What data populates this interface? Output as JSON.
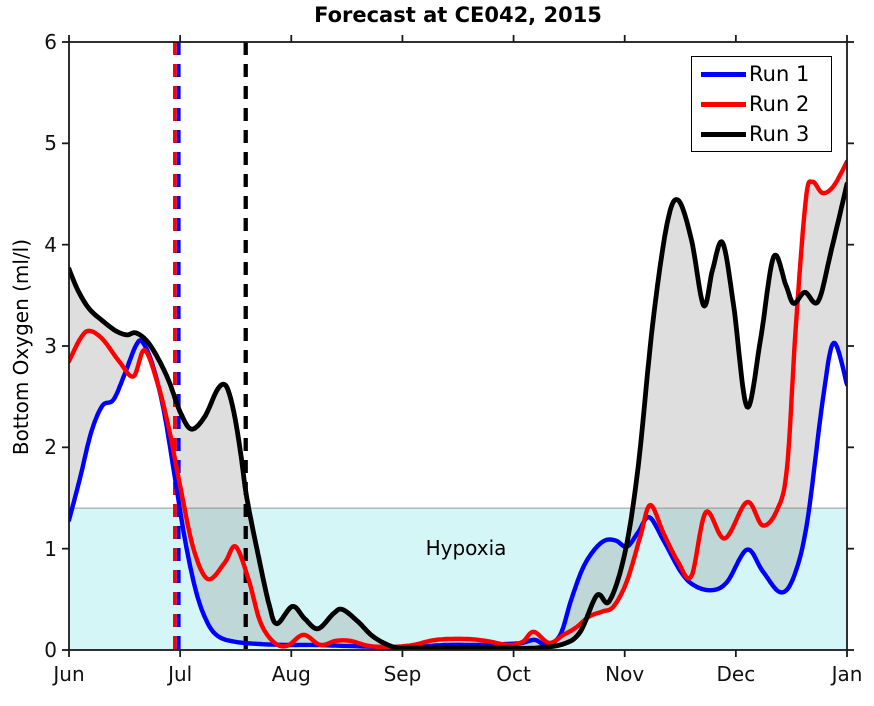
{
  "title": "Forecast at CE042, 2015",
  "chart_data": {
    "type": "line",
    "title": "Forecast at CE042, 2015",
    "xlabel": "",
    "ylabel": "Bottom Oxygen (ml/l)",
    "x_unit": "months since Jun 1",
    "xlim": [
      0,
      7
    ],
    "ylim": [
      0,
      6
    ],
    "grid": false,
    "x_tick_labels": [
      "Jun",
      "Jul",
      "Aug",
      "Sep",
      "Oct",
      "Nov",
      "Dec",
      "Jan"
    ],
    "x_tick_positions": [
      0,
      1,
      2,
      3,
      4,
      5,
      6,
      7
    ],
    "y_ticks": [
      0,
      1,
      2,
      3,
      4,
      5,
      6
    ],
    "legend": {
      "position": "top-right",
      "entries": [
        "Run 1",
        "Run 2",
        "Run 3"
      ]
    },
    "hypoxia_region": {
      "label": "Hypoxia",
      "threshold": 1.4,
      "color": "#d5f6f6",
      "edge_color": "#9a9a9a"
    },
    "envelope_fill": "rgba(128,128,128,0.26)",
    "axis_color": "#1a1a1a",
    "vlines": [
      {
        "x": 0.97,
        "style": "dashed",
        "colors": [
          "#ff0000",
          "#0000ff"
        ]
      },
      {
        "x": 1.59,
        "style": "dashed",
        "colors": [
          "#000000"
        ]
      }
    ],
    "series": [
      {
        "name": "Run 1",
        "color": "#0000ff",
        "points": [
          [
            0,
            1.28
          ],
          [
            0.1,
            1.7
          ],
          [
            0.2,
            2.15
          ],
          [
            0.3,
            2.41
          ],
          [
            0.4,
            2.47
          ],
          [
            0.5,
            2.72
          ],
          [
            0.6,
            3.0
          ],
          [
            0.66,
            3.04
          ],
          [
            0.75,
            2.82
          ],
          [
            0.85,
            2.38
          ],
          [
            0.95,
            1.72
          ],
          [
            1.05,
            1.05
          ],
          [
            1.15,
            0.55
          ],
          [
            1.25,
            0.26
          ],
          [
            1.35,
            0.13
          ],
          [
            1.5,
            0.08
          ],
          [
            1.7,
            0.06
          ],
          [
            1.95,
            0.05
          ],
          [
            2.2,
            0.05
          ],
          [
            2.5,
            0.04
          ],
          [
            2.8,
            0.03
          ],
          [
            3.1,
            0.03
          ],
          [
            3.4,
            0.05
          ],
          [
            3.7,
            0.05
          ],
          [
            3.95,
            0.06
          ],
          [
            4.08,
            0.07
          ],
          [
            4.19,
            0.1
          ],
          [
            4.3,
            0.05
          ],
          [
            4.42,
            0.15
          ],
          [
            4.52,
            0.5
          ],
          [
            4.62,
            0.8
          ],
          [
            4.72,
            0.98
          ],
          [
            4.82,
            1.08
          ],
          [
            4.92,
            1.08
          ],
          [
            5.02,
            1.02
          ],
          [
            5.12,
            1.16
          ],
          [
            5.22,
            1.31
          ],
          [
            5.35,
            1.08
          ],
          [
            5.5,
            0.78
          ],
          [
            5.62,
            0.64
          ],
          [
            5.78,
            0.59
          ],
          [
            5.92,
            0.67
          ],
          [
            6.1,
            0.99
          ],
          [
            6.24,
            0.78
          ],
          [
            6.4,
            0.57
          ],
          [
            6.52,
            0.72
          ],
          [
            6.64,
            1.25
          ],
          [
            6.78,
            2.45
          ],
          [
            6.88,
            3.03
          ],
          [
            7,
            2.62
          ]
        ]
      },
      {
        "name": "Run 2",
        "color": "#ff0000",
        "points": [
          [
            0,
            2.85
          ],
          [
            0.1,
            3.07
          ],
          [
            0.18,
            3.15
          ],
          [
            0.3,
            3.07
          ],
          [
            0.45,
            2.85
          ],
          [
            0.58,
            2.7
          ],
          [
            0.68,
            2.96
          ],
          [
            0.8,
            2.62
          ],
          [
            0.9,
            2.18
          ],
          [
            1.0,
            1.62
          ],
          [
            1.12,
            1.0
          ],
          [
            1.25,
            0.7
          ],
          [
            1.4,
            0.86
          ],
          [
            1.5,
            1.02
          ],
          [
            1.62,
            0.68
          ],
          [
            1.72,
            0.28
          ],
          [
            1.84,
            0.08
          ],
          [
            1.96,
            0.04
          ],
          [
            2.11,
            0.15
          ],
          [
            2.26,
            0.05
          ],
          [
            2.4,
            0.09
          ],
          [
            2.53,
            0.09
          ],
          [
            2.7,
            0.04
          ],
          [
            2.9,
            0.03
          ],
          [
            3.1,
            0.05
          ],
          [
            3.3,
            0.1
          ],
          [
            3.55,
            0.11
          ],
          [
            3.75,
            0.09
          ],
          [
            3.95,
            0.05
          ],
          [
            4.08,
            0.08
          ],
          [
            4.18,
            0.18
          ],
          [
            4.32,
            0.07
          ],
          [
            4.45,
            0.15
          ],
          [
            4.56,
            0.22
          ],
          [
            4.68,
            0.33
          ],
          [
            4.8,
            0.38
          ],
          [
            4.9,
            0.43
          ],
          [
            5.02,
            0.68
          ],
          [
            5.14,
            1.12
          ],
          [
            5.23,
            1.43
          ],
          [
            5.35,
            1.15
          ],
          [
            5.48,
            0.87
          ],
          [
            5.6,
            0.73
          ],
          [
            5.73,
            1.36
          ],
          [
            5.9,
            1.1
          ],
          [
            6.1,
            1.46
          ],
          [
            6.24,
            1.23
          ],
          [
            6.37,
            1.38
          ],
          [
            6.46,
            1.8
          ],
          [
            6.54,
            3.2
          ],
          [
            6.63,
            4.45
          ],
          [
            6.69,
            4.62
          ],
          [
            6.78,
            4.51
          ],
          [
            6.88,
            4.58
          ],
          [
            7,
            4.82
          ]
        ]
      },
      {
        "name": "Run 3",
        "color": "#000000",
        "points": [
          [
            0,
            3.76
          ],
          [
            0.08,
            3.55
          ],
          [
            0.18,
            3.37
          ],
          [
            0.3,
            3.25
          ],
          [
            0.42,
            3.15
          ],
          [
            0.52,
            3.11
          ],
          [
            0.6,
            3.13
          ],
          [
            0.7,
            3.05
          ],
          [
            0.8,
            2.88
          ],
          [
            0.9,
            2.65
          ],
          [
            1.0,
            2.35
          ],
          [
            1.1,
            2.18
          ],
          [
            1.22,
            2.3
          ],
          [
            1.33,
            2.56
          ],
          [
            1.4,
            2.62
          ],
          [
            1.45,
            2.5
          ],
          [
            1.5,
            2.25
          ],
          [
            1.55,
            1.9
          ],
          [
            1.6,
            1.5
          ],
          [
            1.7,
            0.95
          ],
          [
            1.8,
            0.45
          ],
          [
            1.87,
            0.26
          ],
          [
            2.01,
            0.43
          ],
          [
            2.12,
            0.31
          ],
          [
            2.24,
            0.21
          ],
          [
            2.38,
            0.36
          ],
          [
            2.46,
            0.4
          ],
          [
            2.6,
            0.28
          ],
          [
            2.74,
            0.13
          ],
          [
            2.92,
            0.03
          ],
          [
            3.1,
            0.02
          ],
          [
            3.5,
            0.02
          ],
          [
            3.9,
            0.02
          ],
          [
            4.2,
            0.02
          ],
          [
            4.45,
            0.06
          ],
          [
            4.6,
            0.18
          ],
          [
            4.75,
            0.54
          ],
          [
            4.86,
            0.48
          ],
          [
            5.0,
            0.95
          ],
          [
            5.12,
            1.8
          ],
          [
            5.25,
            3.2
          ],
          [
            5.38,
            4.2
          ],
          [
            5.48,
            4.44
          ],
          [
            5.6,
            4.05
          ],
          [
            5.71,
            3.4
          ],
          [
            5.79,
            3.75
          ],
          [
            5.88,
            4.02
          ],
          [
            5.98,
            3.4
          ],
          [
            6.1,
            2.4
          ],
          [
            6.22,
            3.05
          ],
          [
            6.34,
            3.88
          ],
          [
            6.45,
            3.6
          ],
          [
            6.52,
            3.42
          ],
          [
            6.62,
            3.53
          ],
          [
            6.74,
            3.44
          ],
          [
            6.86,
            3.95
          ],
          [
            7,
            4.6
          ]
        ]
      }
    ]
  }
}
